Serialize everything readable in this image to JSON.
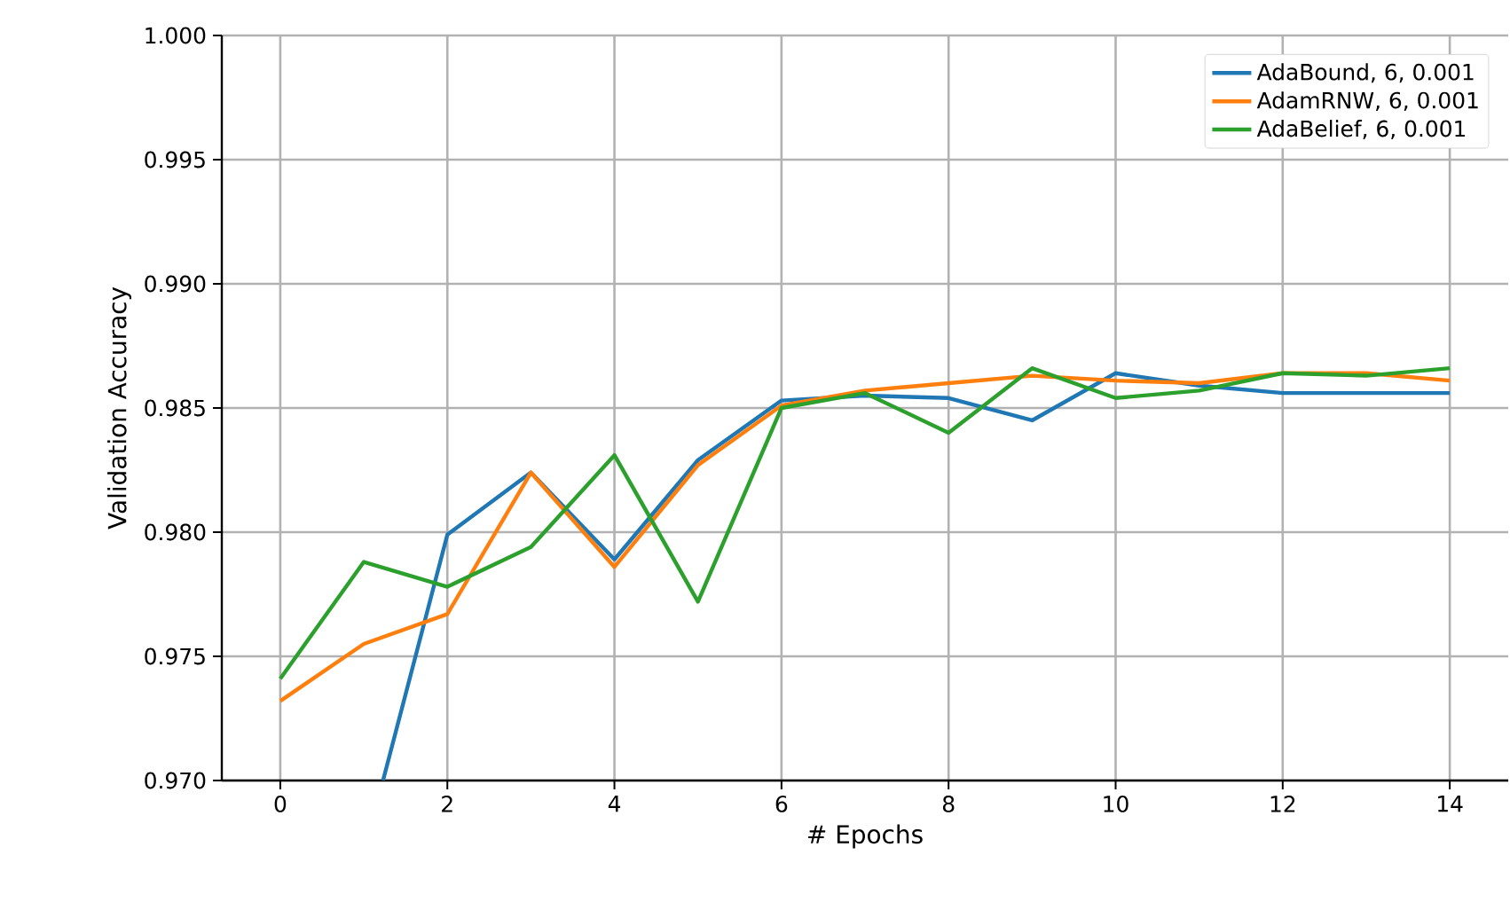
{
  "chart_data": {
    "type": "line",
    "xlabel": "# Epochs",
    "ylabel": "Validation Accuracy",
    "x": [
      0,
      1,
      2,
      3,
      4,
      5,
      6,
      7,
      8,
      9,
      10,
      11,
      12,
      13,
      14
    ],
    "series": [
      {
        "name": "AdaBound, 6, 0.001",
        "color": "#1f77b4",
        "x": [
          1.23,
          2,
          3,
          4,
          5,
          6,
          7,
          8,
          9,
          10,
          11,
          12,
          13,
          14
        ],
        "values": [
          0.97,
          0.9799,
          0.9824,
          0.9789,
          0.9829,
          0.9853,
          0.9855,
          0.9854,
          0.9845,
          0.9864,
          0.9859,
          0.9856,
          0.9856,
          0.9856
        ]
      },
      {
        "name": "AdamRNW, 6, 0.001",
        "color": "#ff7f0e",
        "values": [
          0.9732,
          0.9755,
          0.9767,
          0.9824,
          0.9786,
          0.9827,
          0.9851,
          0.9857,
          0.986,
          0.9863,
          0.9861,
          0.986,
          0.9864,
          0.9864,
          0.9861
        ]
      },
      {
        "name": "AdaBelief, 6, 0.001",
        "color": "#2ca02c",
        "values": [
          0.9741,
          0.9788,
          0.9778,
          0.9794,
          0.9831,
          0.9772,
          0.985,
          0.9856,
          0.984,
          0.9866,
          0.9854,
          0.9857,
          0.9864,
          0.9863,
          0.9866
        ]
      }
    ],
    "xlim": [
      -0.7,
      14.7
    ],
    "ylim": [
      0.97,
      1.0
    ],
    "xticks": [
      0,
      2,
      4,
      6,
      8,
      10,
      12,
      14
    ],
    "yticks": [
      {
        "value": 0.97,
        "label": "0.970"
      },
      {
        "value": 0.975,
        "label": "0.975"
      },
      {
        "value": 0.98,
        "label": "0.980"
      },
      {
        "value": 0.985,
        "label": "0.985"
      },
      {
        "value": 0.99,
        "label": "0.990"
      },
      {
        "value": 0.995,
        "label": "0.995"
      },
      {
        "value": 1.0,
        "label": "1.000"
      }
    ],
    "grid": true,
    "legend": "top right",
    "marker": "none",
    "line_style": "solid"
  }
}
